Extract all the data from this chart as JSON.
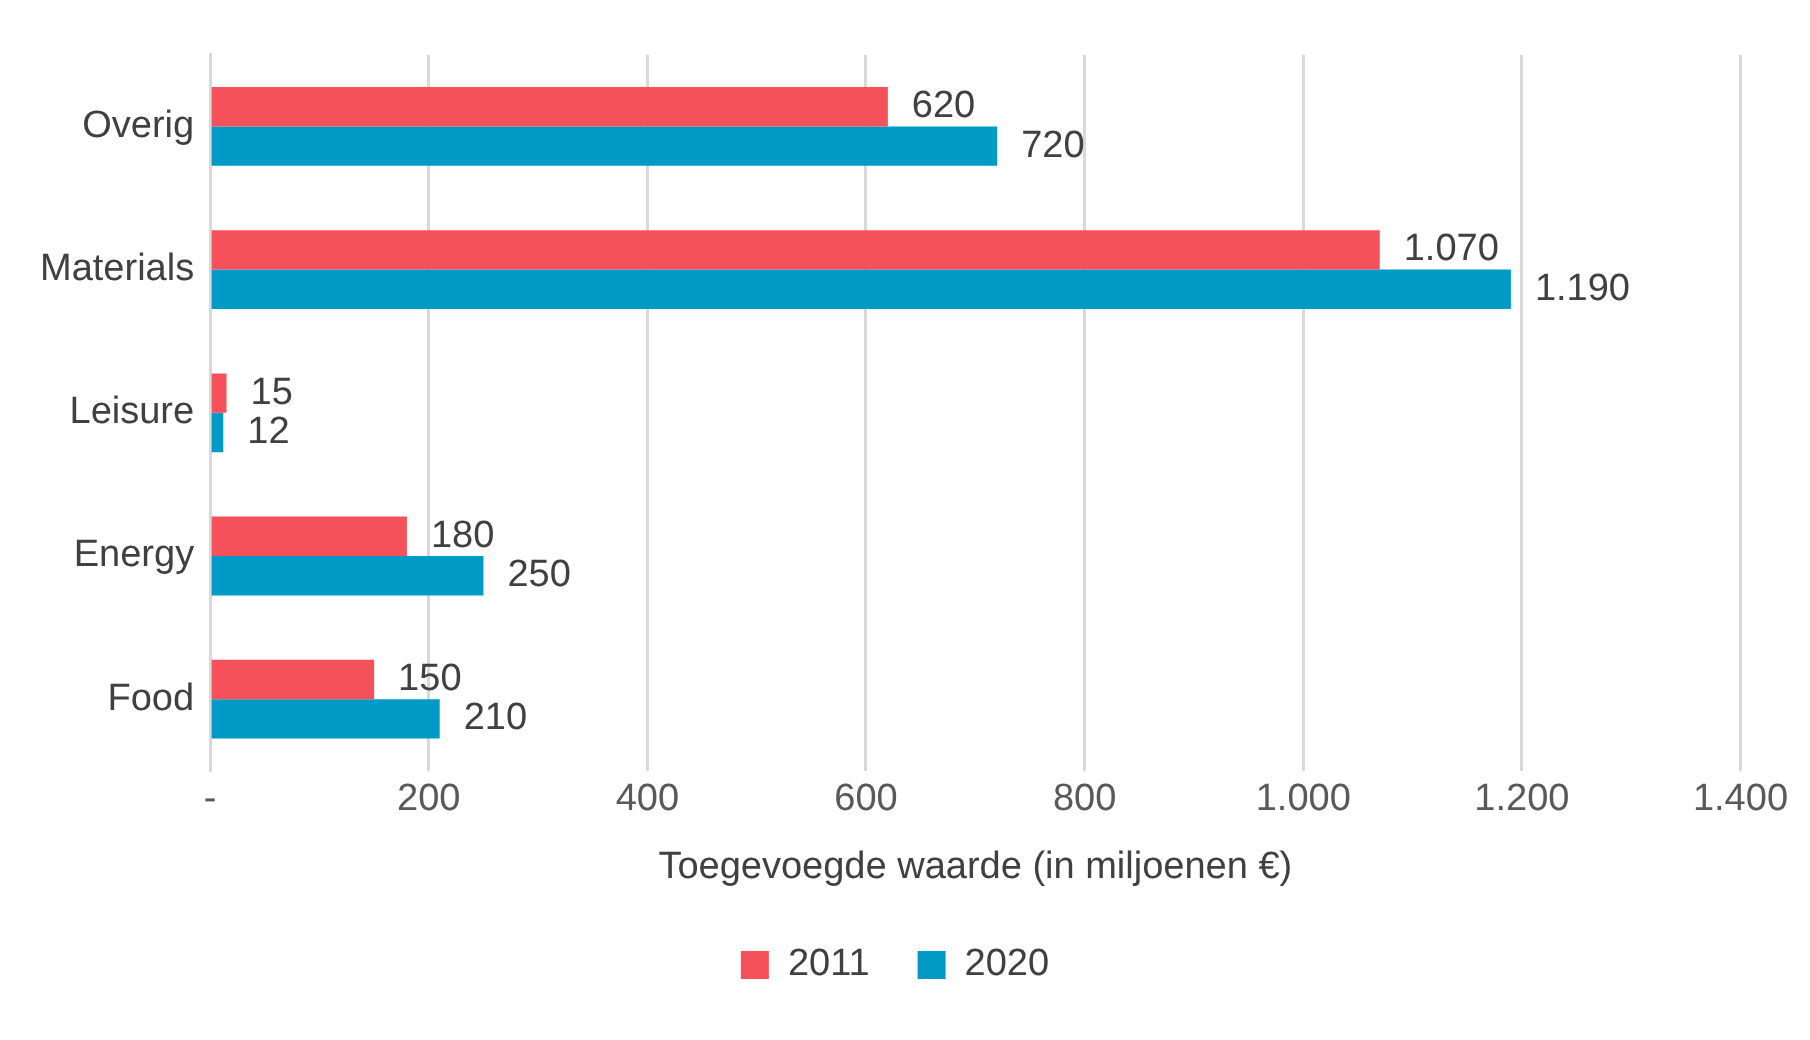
{
  "chart_data": {
    "type": "bar",
    "orientation": "horizontal",
    "xlabel": "Toegevoegde waarde (in miljoenen €)",
    "categories": [
      "Overig",
      "Materials",
      "Leisure",
      "Energy",
      "Food"
    ],
    "series": [
      {
        "name": "2011",
        "color": "#f4515a",
        "values": [
          620,
          1070,
          15,
          180,
          150
        ],
        "value_labels": [
          "620",
          "1.070",
          "15",
          "180",
          "150"
        ]
      },
      {
        "name": "2020",
        "color": "#009ac7",
        "values": [
          720,
          1190,
          12,
          250,
          210
        ],
        "value_labels": [
          "720",
          "1.190",
          "12",
          "250",
          "210"
        ]
      }
    ],
    "xlim": [
      0,
      1400
    ],
    "xticks": [
      {
        "value": 0,
        "label": "-"
      },
      200,
      400,
      600,
      800,
      {
        "value": 1000,
        "label": "1.000"
      },
      {
        "value": 1200,
        "label": "1.200"
      },
      {
        "value": 1400,
        "label": "1.400"
      }
    ],
    "grid": "x",
    "legend": "bottom"
  }
}
